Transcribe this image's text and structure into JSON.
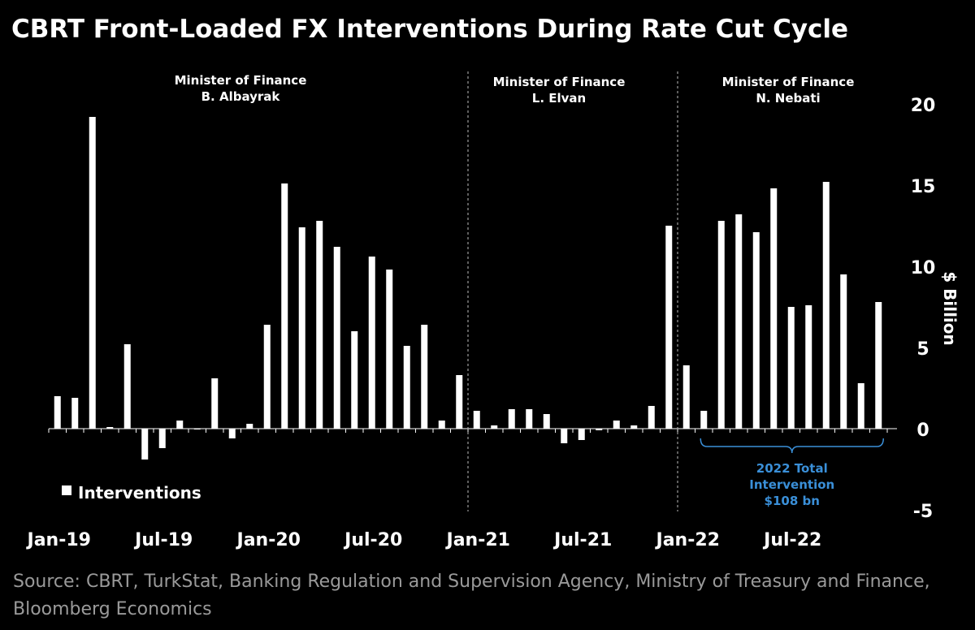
{
  "title": "CBRT Front-Loaded FX Interventions During Rate Cut Cycle",
  "source": "Source: CBRT, TurkStat, Banking Regulation and Supervision Agency, Ministry of Treasury and Finance, Bloomberg Economics",
  "colors": {
    "background": "#000000",
    "bars": "#ffffff",
    "annotation": "#3a8fd8",
    "source_text": "#9a9a9a"
  },
  "periods": [
    {
      "line1": "Minister of Finance",
      "line2": "B. Albayrak"
    },
    {
      "line1": "Minister of Finance",
      "line2": "L. Elvan"
    },
    {
      "line1": "Minister of Finance",
      "line2": "N. Nebati"
    }
  ],
  "annotation": {
    "line1": "2022 Total",
    "line2": "Intervention",
    "line3": "$108 bn"
  },
  "chart_data": {
    "type": "bar",
    "title": "CBRT Front-Loaded FX Interventions During Rate Cut Cycle",
    "ylabel": "$ Billion",
    "ylim": [
      -5,
      20
    ],
    "yticks": [
      -5,
      0,
      5,
      10,
      15,
      20
    ],
    "y_axis_position": "right",
    "legend": {
      "position": "bottom-left",
      "entries": [
        "Interventions"
      ]
    },
    "x_tick_labels": [
      "Jan-19",
      "Jul-19",
      "Jan-20",
      "Jul-20",
      "Jan-21",
      "Jul-21",
      "Jan-22",
      "Jul-22"
    ],
    "x": [
      "2019-01",
      "2019-02",
      "2019-03",
      "2019-04",
      "2019-05",
      "2019-06",
      "2019-07",
      "2019-08",
      "2019-09",
      "2019-10",
      "2019-11",
      "2019-12",
      "2020-01",
      "2020-02",
      "2020-03",
      "2020-04",
      "2020-05",
      "2020-06",
      "2020-07",
      "2020-08",
      "2020-09",
      "2020-10",
      "2020-11",
      "2020-12",
      "2021-01",
      "2021-02",
      "2021-03",
      "2021-04",
      "2021-05",
      "2021-06",
      "2021-07",
      "2021-08",
      "2021-09",
      "2021-10",
      "2021-11",
      "2021-12",
      "2022-01",
      "2022-02",
      "2022-03",
      "2022-04",
      "2022-05",
      "2022-06",
      "2022-07",
      "2022-08",
      "2022-09",
      "2022-10",
      "2022-11",
      "2022-12"
    ],
    "series": [
      {
        "name": "Interventions",
        "values": [
          2.0,
          1.9,
          19.2,
          0.1,
          5.2,
          -1.9,
          -1.2,
          0.5,
          0.0,
          3.1,
          -0.6,
          0.3,
          6.4,
          15.1,
          12.4,
          12.8,
          11.2,
          6.0,
          10.6,
          9.8,
          5.1,
          6.4,
          0.5,
          3.3,
          1.1,
          0.2,
          1.2,
          1.2,
          0.9,
          -0.9,
          -0.7,
          -0.1,
          0.5,
          0.2,
          1.4,
          12.5,
          3.9,
          1.1,
          12.8,
          13.2,
          12.1,
          14.8,
          7.5,
          7.6,
          15.2,
          9.5,
          2.8,
          7.8
        ]
      }
    ],
    "period_dividers_after": [
      "2020-12",
      "2021-12"
    ],
    "bracket_range": [
      "2022-02",
      "2022-12"
    ]
  }
}
